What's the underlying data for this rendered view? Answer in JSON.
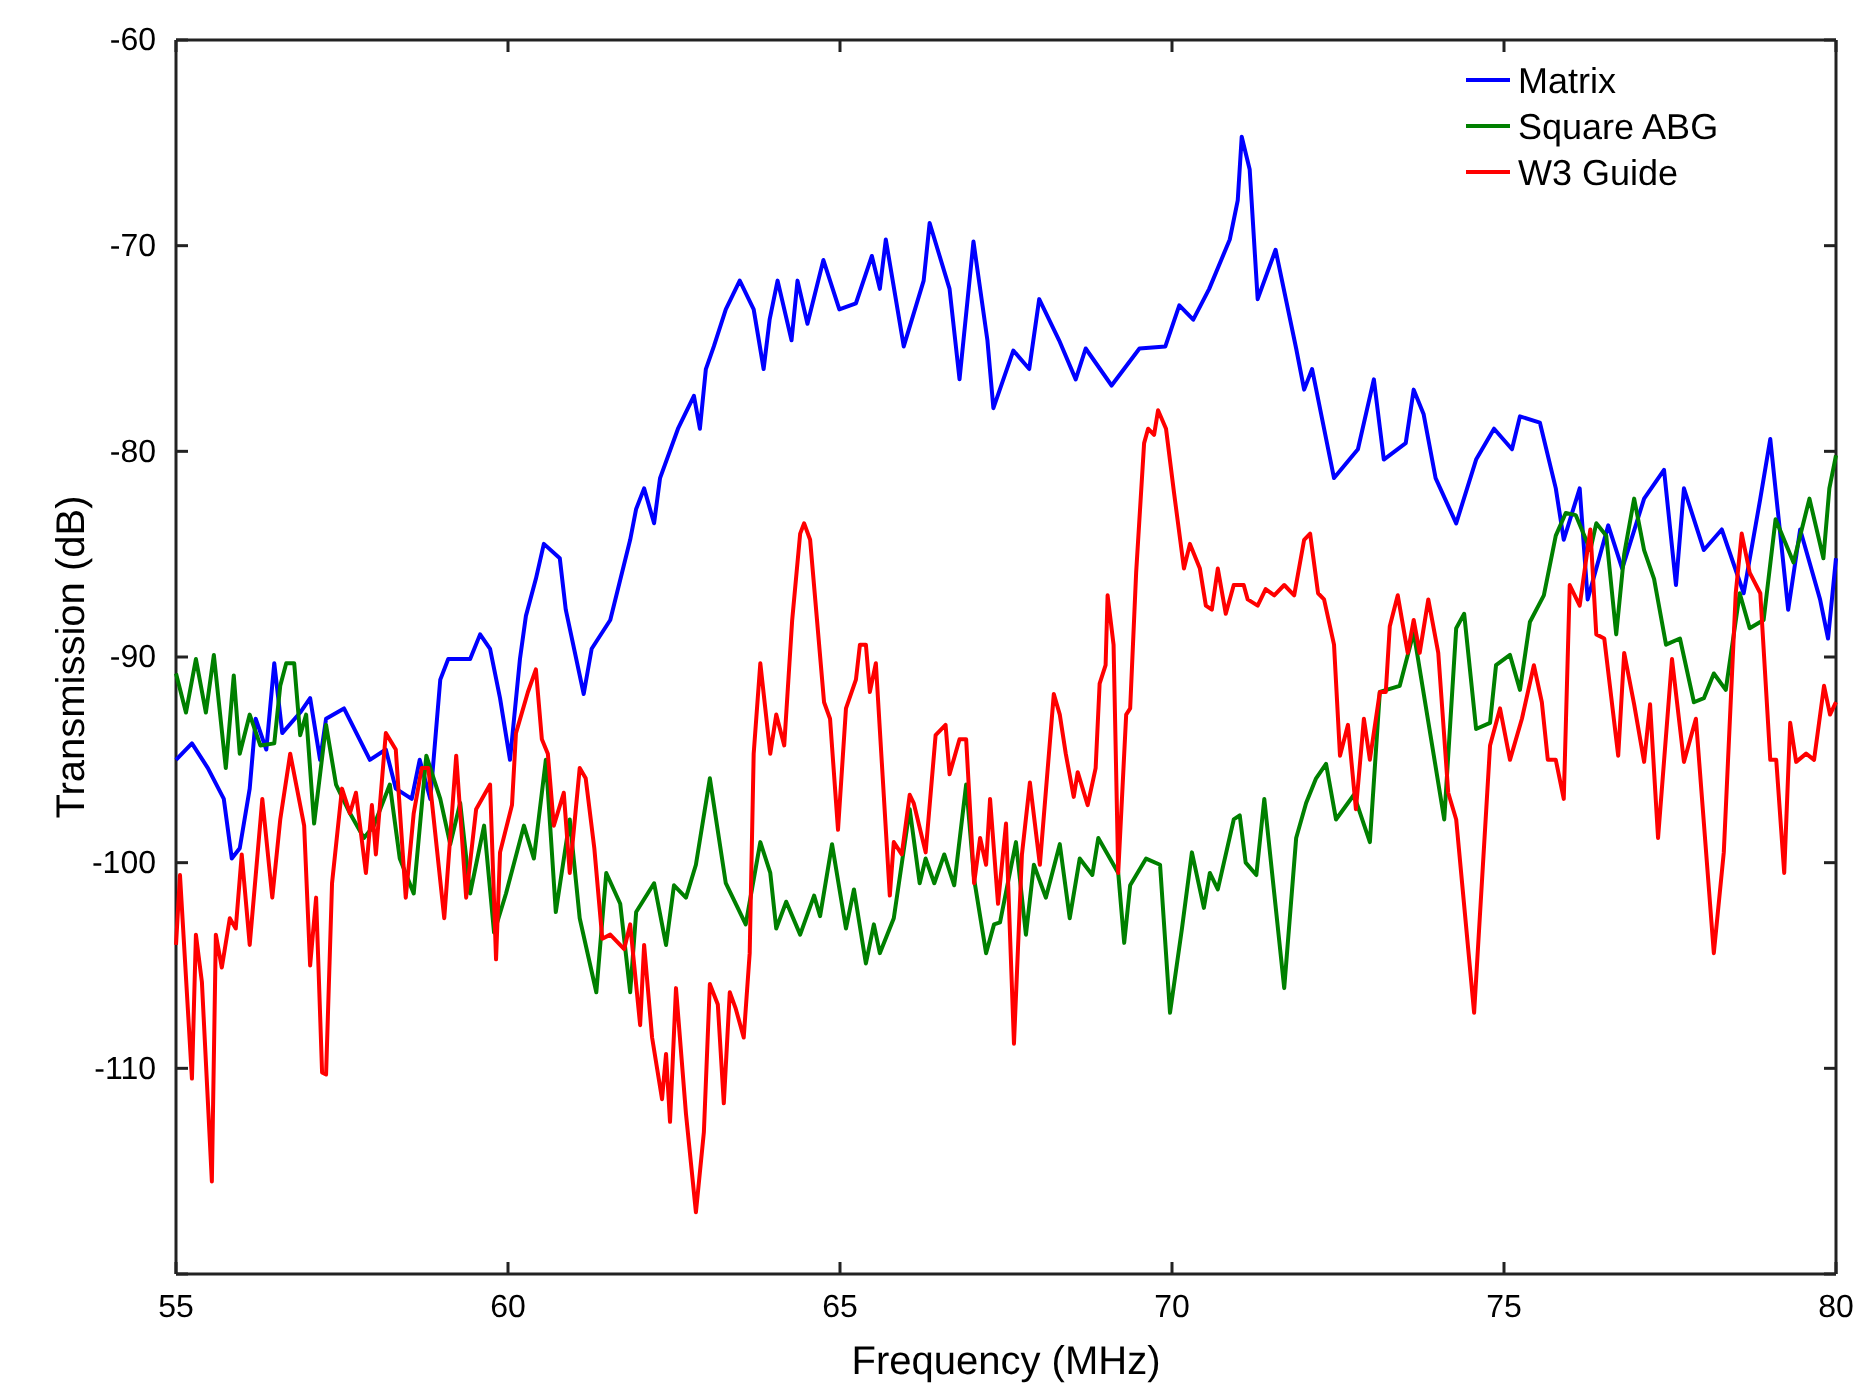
{
  "chart_data": {
    "type": "line",
    "xlabel": "Frequency (MHz)",
    "ylabel": "Transmission (dB)",
    "xlim": [
      55,
      80
    ],
    "ylim": [
      -120,
      -60
    ],
    "xticks": [
      55,
      60,
      65,
      70,
      75,
      80
    ],
    "yticks": [
      {
        "value": -120,
        "label": null
      },
      -110,
      -100,
      -90,
      -80,
      -70,
      -60
    ],
    "grid": false,
    "legend": "top right",
    "marker": "none",
    "line_style": "solid",
    "series": [
      {
        "name": "Matrix",
        "color": "#0000ff",
        "x": [
          55.0,
          55.24,
          55.48,
          55.72,
          55.84,
          55.96,
          56.11,
          56.2,
          56.36,
          56.48,
          56.6,
          56.87,
          57.02,
          57.17,
          57.26,
          57.53,
          57.92,
          58.16,
          58.31,
          58.55,
          58.67,
          58.83,
          58.98,
          59.1,
          59.43,
          59.58,
          59.73,
          59.88,
          60.03,
          60.18,
          60.27,
          60.42,
          60.54,
          60.78,
          60.87,
          61.14,
          61.26,
          61.54,
          61.84,
          61.93,
          62.05,
          62.2,
          62.29,
          62.56,
          62.8,
          62.89,
          62.98,
          63.1,
          63.28,
          63.49,
          63.7,
          63.85,
          63.94,
          64.06,
          64.27,
          64.36,
          64.51,
          64.75,
          64.99,
          65.24,
          65.48,
          65.6,
          65.69,
          65.96,
          66.26,
          66.35,
          66.65,
          66.8,
          67.01,
          67.22,
          67.31,
          67.61,
          67.85,
          68.0,
          68.3,
          68.55,
          68.7,
          69.09,
          69.51,
          69.9,
          70.11,
          70.32,
          70.56,
          70.87,
          70.99,
          71.05,
          71.17,
          71.29,
          71.56,
          71.87,
          71.99,
          72.11,
          72.44,
          72.8,
          73.04,
          73.19,
          73.52,
          73.64,
          73.79,
          73.97,
          74.28,
          74.58,
          74.85,
          75.12,
          75.24,
          75.54,
          75.78,
          75.9,
          76.14,
          76.26,
          76.57,
          76.78,
          77.11,
          77.41,
          77.59,
          77.71,
          78.01,
          78.28,
          78.61,
          78.86,
          79.01,
          79.28,
          79.46,
          79.76,
          79.88,
          80.0
        ],
        "values": [
          -95.0,
          -94.2,
          -95.4,
          -96.9,
          -99.8,
          -99.3,
          -96.4,
          -93.0,
          -94.5,
          -90.3,
          -93.7,
          -92.7,
          -92.0,
          -95.0,
          -93.0,
          -92.5,
          -95.0,
          -94.5,
          -96.4,
          -96.9,
          -95.0,
          -96.9,
          -91.1,
          -90.1,
          -90.1,
          -88.9,
          -89.6,
          -92.0,
          -95.0,
          -90.1,
          -88.0,
          -86.2,
          -84.5,
          -85.2,
          -87.7,
          -91.8,
          -89.6,
          -88.2,
          -84.3,
          -82.8,
          -81.8,
          -83.5,
          -81.3,
          -78.9,
          -77.3,
          -78.9,
          -76.0,
          -74.9,
          -73.1,
          -71.7,
          -73.1,
          -76.0,
          -73.6,
          -71.7,
          -74.6,
          -71.7,
          -73.8,
          -70.7,
          -73.1,
          -72.8,
          -70.5,
          -72.1,
          -69.7,
          -74.9,
          -71.7,
          -68.9,
          -72.1,
          -76.5,
          -69.8,
          -74.6,
          -77.9,
          -75.1,
          -76.0,
          -72.6,
          -74.6,
          -76.5,
          -75.0,
          -76.8,
          -75.0,
          -74.9,
          -72.9,
          -73.6,
          -72.1,
          -69.7,
          -67.8,
          -64.7,
          -66.3,
          -72.6,
          -70.2,
          -75.0,
          -77.0,
          -76.0,
          -81.3,
          -79.9,
          -76.5,
          -80.4,
          -79.6,
          -77.0,
          -78.2,
          -81.3,
          -83.5,
          -80.4,
          -78.9,
          -79.9,
          -78.3,
          -78.6,
          -81.8,
          -84.3,
          -81.8,
          -87.2,
          -83.6,
          -85.7,
          -82.3,
          -80.9,
          -86.5,
          -81.8,
          -84.8,
          -83.8,
          -86.9,
          -82.3,
          -79.4,
          -87.7,
          -83.8,
          -87.2,
          -89.1,
          -85.2
        ]
      },
      {
        "name": "Square ABG",
        "color": "#008000",
        "x": [
          55.0,
          55.15,
          55.3,
          55.45,
          55.57,
          55.75,
          55.87,
          55.96,
          56.11,
          56.27,
          56.48,
          56.57,
          56.66,
          56.78,
          56.87,
          56.96,
          57.08,
          57.26,
          57.41,
          57.62,
          57.83,
          57.98,
          58.22,
          58.37,
          58.58,
          58.77,
          58.98,
          59.13,
          59.28,
          59.43,
          59.64,
          59.79,
          59.97,
          60.24,
          60.39,
          60.57,
          60.72,
          60.93,
          61.08,
          61.33,
          61.48,
          61.69,
          61.84,
          61.93,
          62.2,
          62.38,
          62.5,
          62.68,
          62.83,
          63.04,
          63.28,
          63.58,
          63.8,
          63.95,
          64.04,
          64.19,
          64.4,
          64.61,
          64.7,
          64.88,
          65.09,
          65.21,
          65.39,
          65.51,
          65.6,
          65.81,
          66.05,
          66.2,
          66.29,
          66.42,
          66.57,
          66.72,
          66.9,
          67.02,
          67.2,
          67.32,
          67.41,
          67.65,
          67.8,
          67.92,
          68.1,
          68.31,
          68.46,
          68.61,
          68.8,
          68.89,
          69.19,
          69.28,
          69.37,
          69.61,
          69.82,
          69.97,
          70.15,
          70.3,
          70.48,
          70.57,
          70.69,
          70.93,
          71.02,
          71.11,
          71.27,
          71.39,
          71.54,
          71.69,
          71.87,
          72.02,
          72.17,
          72.32,
          72.47,
          72.74,
          72.98,
          73.13,
          73.43,
          73.64,
          74.1,
          74.28,
          74.4,
          74.58,
          74.79,
          74.88,
          75.09,
          75.24,
          75.39,
          75.6,
          75.78,
          75.93,
          76.08,
          76.3,
          76.39,
          76.54,
          76.69,
          76.81,
          76.96,
          77.11,
          77.26,
          77.44,
          77.65,
          77.86,
          78.01,
          78.16,
          78.34,
          78.55,
          78.7,
          78.91,
          79.09,
          79.36,
          79.6,
          79.81,
          79.9,
          80.0
        ],
        "values": [
          -90.8,
          -92.7,
          -90.1,
          -92.7,
          -89.9,
          -95.4,
          -90.9,
          -94.7,
          -92.8,
          -94.3,
          -94.2,
          -91.4,
          -90.3,
          -90.3,
          -93.8,
          -92.8,
          -98.1,
          -93.3,
          -96.2,
          -97.6,
          -98.8,
          -98.2,
          -96.2,
          -99.8,
          -101.5,
          -94.8,
          -96.9,
          -99.1,
          -97.1,
          -101.5,
          -98.2,
          -103.4,
          -101.5,
          -98.2,
          -99.8,
          -95.0,
          -102.4,
          -97.9,
          -102.7,
          -106.3,
          -100.5,
          -102.0,
          -106.3,
          -102.4,
          -101.0,
          -104.0,
          -101.1,
          -101.7,
          -100.1,
          -95.9,
          -101.0,
          -103.0,
          -99.0,
          -100.5,
          -103.2,
          -101.9,
          -103.5,
          -101.6,
          -102.6,
          -99.1,
          -103.2,
          -101.3,
          -104.9,
          -103.0,
          -104.4,
          -102.7,
          -97.4,
          -101.0,
          -99.8,
          -101.0,
          -99.6,
          -101.1,
          -96.2,
          -100.8,
          -104.4,
          -103.0,
          -102.9,
          -99.0,
          -103.5,
          -100.1,
          -101.7,
          -99.1,
          -102.7,
          -99.8,
          -100.6,
          -98.8,
          -100.5,
          -103.9,
          -101.1,
          -99.8,
          -100.1,
          -107.3,
          -103.2,
          -99.5,
          -102.2,
          -100.5,
          -101.3,
          -97.9,
          -97.7,
          -100.0,
          -100.6,
          -96.9,
          -101.5,
          -106.1,
          -98.8,
          -97.1,
          -95.9,
          -95.2,
          -97.9,
          -96.7,
          -99.0,
          -91.7,
          -91.4,
          -88.8,
          -97.9,
          -88.6,
          -87.9,
          -93.5,
          -93.2,
          -90.4,
          -89.9,
          -91.6,
          -88.3,
          -87.0,
          -84.1,
          -83.0,
          -83.1,
          -84.8,
          -83.5,
          -84.1,
          -88.9,
          -85.0,
          -82.3,
          -84.8,
          -86.2,
          -89.4,
          -89.1,
          -92.2,
          -92.0,
          -90.8,
          -91.6,
          -86.9,
          -88.6,
          -88.2,
          -83.3,
          -85.4,
          -82.3,
          -85.2,
          -81.8,
          -80.2
        ]
      },
      {
        "name": "W3 Guide",
        "color": "#ff0000",
        "x": [
          55.0,
          55.06,
          55.24,
          55.3,
          55.39,
          55.54,
          55.6,
          55.69,
          55.81,
          55.9,
          55.99,
          56.11,
          56.3,
          56.45,
          56.57,
          56.72,
          56.93,
          57.02,
          57.11,
          57.2,
          57.26,
          57.35,
          57.5,
          57.62,
          57.71,
          57.86,
          57.95,
          58.01,
          58.16,
          58.31,
          58.46,
          58.58,
          58.7,
          58.8,
          59.04,
          59.22,
          59.37,
          59.52,
          59.73,
          59.82,
          59.88,
          60.06,
          60.12,
          60.3,
          60.42,
          60.51,
          60.6,
          60.69,
          60.84,
          60.93,
          61.08,
          61.17,
          61.3,
          61.42,
          61.54,
          61.75,
          61.84,
          61.99,
          62.05,
          62.17,
          62.32,
          62.38,
          62.44,
          62.53,
          62.68,
          62.83,
          62.95,
          63.04,
          63.16,
          63.25,
          63.34,
          63.43,
          63.55,
          63.64,
          63.7,
          63.8,
          63.95,
          64.04,
          64.16,
          64.28,
          64.4,
          64.46,
          64.55,
          64.76,
          64.85,
          64.97,
          65.09,
          65.24,
          65.3,
          65.39,
          65.45,
          65.54,
          65.75,
          65.81,
          65.93,
          66.05,
          66.11,
          66.29,
          66.44,
          66.59,
          66.65,
          66.8,
          66.9,
          67.02,
          67.11,
          67.2,
          67.26,
          67.38,
          67.5,
          67.62,
          67.74,
          67.86,
          68.01,
          68.22,
          68.31,
          68.4,
          68.52,
          68.58,
          68.73,
          68.85,
          68.91,
          69.0,
          69.03,
          69.12,
          69.19,
          69.31,
          69.37,
          69.46,
          69.58,
          69.64,
          69.73,
          69.79,
          69.91,
          70.03,
          70.18,
          70.27,
          70.42,
          70.51,
          70.6,
          70.69,
          70.81,
          70.93,
          71.08,
          71.14,
          71.29,
          71.41,
          71.54,
          71.69,
          71.84,
          71.99,
          72.08,
          72.2,
          72.29,
          72.44,
          72.53,
          72.65,
          72.77,
          72.89,
          72.98,
          73.13,
          73.22,
          73.28,
          73.4,
          73.55,
          73.64,
          73.73,
          73.86,
          74.01,
          74.16,
          74.28,
          74.55,
          74.79,
          74.94,
          75.09,
          75.27,
          75.45,
          75.57,
          75.66,
          75.78,
          75.9,
          75.99,
          76.14,
          76.3,
          76.39,
          76.51,
          76.72,
          76.81,
          76.96,
          77.11,
          77.2,
          77.32,
          77.53,
          77.71,
          77.89,
          78.16,
          78.31,
          78.49,
          78.58,
          78.7,
          78.86,
          79.01,
          79.1,
          79.22,
          79.31,
          79.4,
          79.55,
          79.67,
          79.82,
          79.91,
          80.0
        ],
        "values": [
          -104.0,
          -100.6,
          -110.5,
          -103.5,
          -105.8,
          -115.5,
          -103.5,
          -105.1,
          -102.7,
          -103.2,
          -99.6,
          -104.0,
          -96.9,
          -101.7,
          -97.9,
          -94.7,
          -98.2,
          -105.0,
          -101.7,
          -110.2,
          -110.3,
          -101.0,
          -96.4,
          -97.6,
          -96.6,
          -100.5,
          -97.2,
          -99.6,
          -93.7,
          -94.5,
          -101.7,
          -97.6,
          -95.4,
          -95.4,
          -102.7,
          -94.8,
          -101.7,
          -97.4,
          -96.2,
          -104.7,
          -99.5,
          -97.2,
          -93.7,
          -91.7,
          -90.6,
          -94.0,
          -94.7,
          -98.2,
          -96.6,
          -100.5,
          -95.4,
          -95.9,
          -99.3,
          -103.7,
          -103.5,
          -104.2,
          -103.0,
          -107.9,
          -104.0,
          -108.5,
          -111.5,
          -109.3,
          -112.6,
          -106.1,
          -112.2,
          -117.0,
          -113.1,
          -105.9,
          -106.9,
          -111.7,
          -106.3,
          -107.1,
          -108.5,
          -104.4,
          -94.7,
          -90.3,
          -94.7,
          -92.8,
          -94.3,
          -88.2,
          -84.0,
          -83.5,
          -84.3,
          -92.2,
          -93.0,
          -98.4,
          -92.5,
          -91.1,
          -89.4,
          -89.4,
          -91.7,
          -90.3,
          -101.6,
          -99.0,
          -99.6,
          -96.7,
          -97.1,
          -99.5,
          -93.8,
          -93.3,
          -95.7,
          -94.0,
          -94.0,
          -101.0,
          -98.8,
          -100.1,
          -96.9,
          -102.0,
          -98.1,
          -108.8,
          -99.6,
          -96.1,
          -100.1,
          -91.8,
          -92.8,
          -94.7,
          -96.8,
          -95.6,
          -97.2,
          -95.4,
          -91.3,
          -90.4,
          -87.0,
          -89.4,
          -100.5,
          -92.8,
          -92.5,
          -85.9,
          -79.6,
          -78.9,
          -79.2,
          -78.0,
          -78.9,
          -82.0,
          -85.7,
          -84.5,
          -85.7,
          -87.5,
          -87.7,
          -85.7,
          -87.9,
          -86.5,
          -86.5,
          -87.2,
          -87.5,
          -86.7,
          -87.0,
          -86.5,
          -87.0,
          -84.3,
          -84.0,
          -86.9,
          -87.2,
          -89.4,
          -94.8,
          -93.3,
          -97.4,
          -93.0,
          -95.0,
          -91.7,
          -91.7,
          -88.5,
          -87.0,
          -89.8,
          -88.2,
          -89.8,
          -87.2,
          -89.8,
          -96.6,
          -97.9,
          -107.3,
          -94.3,
          -92.5,
          -95.0,
          -93.0,
          -90.4,
          -92.2,
          -95.0,
          -95.0,
          -96.9,
          -86.5,
          -87.5,
          -83.8,
          -88.9,
          -89.1,
          -94.8,
          -89.8,
          -92.3,
          -95.1,
          -92.3,
          -98.8,
          -90.1,
          -95.1,
          -93.0,
          -104.4,
          -99.5,
          -86.9,
          -84.0,
          -85.9,
          -86.9,
          -95.0,
          -95.0,
          -100.5,
          -93.2,
          -95.1,
          -94.7,
          -95.0,
          -91.4,
          -92.8,
          -92.2
        ]
      }
    ]
  }
}
